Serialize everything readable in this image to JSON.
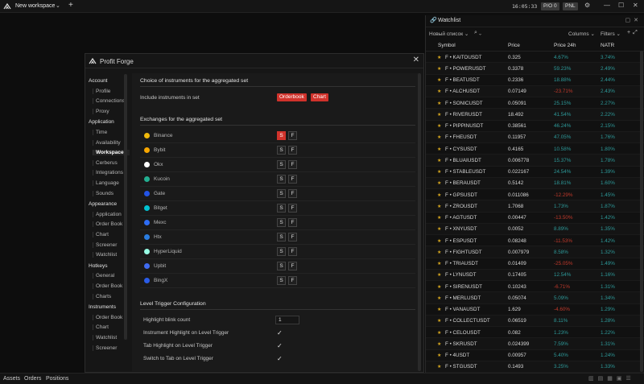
{
  "topbar": {
    "workspace": "New workspace",
    "clock": "16:05:33",
    "po_label": "P/O 0",
    "pnl_label": "PNL"
  },
  "bottombar": {
    "tabs": [
      "Assets",
      "Orders",
      "Positions"
    ]
  },
  "watchlist": {
    "title": "Watchlist",
    "list_name": "Новый список",
    "columns_label": "Columns",
    "filters_label": "Filters",
    "headers": {
      "symbol": "Symbol",
      "price": "Price",
      "change": "Price 24h",
      "natr": "NATR"
    },
    "rows": [
      {
        "symbol": "F • KAITOUSDT",
        "price": "0.325",
        "change": "4.67%",
        "dir": "pos",
        "natr": "3.74%"
      },
      {
        "symbol": "F • POWERUSDT",
        "price": "0.3378",
        "change": "59.23%",
        "dir": "pos",
        "natr": "2.49%"
      },
      {
        "symbol": "F • BEATUSDT",
        "price": "0.2336",
        "change": "18.88%",
        "dir": "pos",
        "natr": "2.44%"
      },
      {
        "symbol": "F • ALCHUSDT",
        "price": "0.07149",
        "change": "-23.71%",
        "dir": "neg",
        "natr": "2.43%"
      },
      {
        "symbol": "F • SONICUSDT",
        "price": "0.05091",
        "change": "25.15%",
        "dir": "pos",
        "natr": "2.27%"
      },
      {
        "symbol": "F • RIVERUSDT",
        "price": "18.492",
        "change": "41.54%",
        "dir": "pos",
        "natr": "2.22%"
      },
      {
        "symbol": "F • PIPPINUSDT",
        "price": "0.38561",
        "change": "46.24%",
        "dir": "pos",
        "natr": "2.15%"
      },
      {
        "symbol": "F • FHEUSDT",
        "price": "0.11957",
        "change": "47.05%",
        "dir": "pos",
        "natr": "1.76%"
      },
      {
        "symbol": "F • CYSUSDT",
        "price": "0.4165",
        "change": "10.58%",
        "dir": "pos",
        "natr": "1.80%"
      },
      {
        "symbol": "F • BLUAIUSDT",
        "price": "0.006778",
        "change": "15.37%",
        "dir": "pos",
        "natr": "1.78%"
      },
      {
        "symbol": "F • STABLEUSDT",
        "price": "0.022167",
        "change": "24.54%",
        "dir": "pos",
        "natr": "1.39%"
      },
      {
        "symbol": "F • BERAUSDT",
        "price": "0.5142",
        "change": "18.81%",
        "dir": "pos",
        "natr": "1.60%"
      },
      {
        "symbol": "F • GPSUSDT",
        "price": "0.011086",
        "change": "-12.29%",
        "dir": "neg",
        "natr": "1.45%"
      },
      {
        "symbol": "F • ZROUSDT",
        "price": "1.7068",
        "change": "1.73%",
        "dir": "pos",
        "natr": "1.87%"
      },
      {
        "symbol": "F • AGTUSDT",
        "price": "0.00447",
        "change": "-13.50%",
        "dir": "neg",
        "natr": "1.42%"
      },
      {
        "symbol": "F • XNYUSDT",
        "price": "0.0052",
        "change": "8.89%",
        "dir": "pos",
        "natr": "1.35%"
      },
      {
        "symbol": "F • ESPUSDT",
        "price": "0.08248",
        "change": "-11.53%",
        "dir": "neg",
        "natr": "1.42%"
      },
      {
        "symbol": "F • FIGHTUSDT",
        "price": "0.007979",
        "change": "8.58%",
        "dir": "pos",
        "natr": "1.32%"
      },
      {
        "symbol": "F • TRIAUSDT",
        "price": "0.01409",
        "change": "-25.05%",
        "dir": "neg",
        "natr": "1.49%"
      },
      {
        "symbol": "F • LYNUSDT",
        "price": "0.17405",
        "change": "12.54%",
        "dir": "pos",
        "natr": "1.16%"
      },
      {
        "symbol": "F • SIRENUSDT",
        "price": "0.10243",
        "change": "-6.71%",
        "dir": "neg",
        "natr": "1.31%"
      },
      {
        "symbol": "F • MERLUSDT",
        "price": "0.05074",
        "change": "5.09%",
        "dir": "pos",
        "natr": "1.34%"
      },
      {
        "symbol": "F • VANAUSDT",
        "price": "1.629",
        "change": "-4.60%",
        "dir": "neg",
        "natr": "1.29%"
      },
      {
        "symbol": "F • COLLECTUSDT",
        "price": "0.06519",
        "change": "8.11%",
        "dir": "pos",
        "natr": "1.28%"
      },
      {
        "symbol": "F • CELOUSDT",
        "price": "0.082",
        "change": "1.23%",
        "dir": "pos",
        "natr": "1.22%"
      },
      {
        "symbol": "F • SKRUSDT",
        "price": "0.024399",
        "change": "7.59%",
        "dir": "pos",
        "natr": "1.31%"
      },
      {
        "symbol": "F • 4USDT",
        "price": "0.00957",
        "change": "5.40%",
        "dir": "pos",
        "natr": "1.24%"
      },
      {
        "symbol": "F • STGUSDT",
        "price": "0.1493",
        "change": "3.25%",
        "dir": "pos",
        "natr": "1.33%"
      }
    ]
  },
  "modal": {
    "title": "Profit Forge",
    "sidebar": [
      {
        "type": "sec",
        "label": "Account"
      },
      {
        "type": "itm",
        "label": "Profile"
      },
      {
        "type": "itm",
        "label": "Connections"
      },
      {
        "type": "itm",
        "label": "Proxy"
      },
      {
        "type": "sec",
        "label": "Application"
      },
      {
        "type": "itm",
        "label": "Time"
      },
      {
        "type": "itm",
        "label": "Availability"
      },
      {
        "type": "itm",
        "label": "Workspace",
        "active": true
      },
      {
        "type": "itm",
        "label": "Cerberus"
      },
      {
        "type": "itm",
        "label": "Integrations"
      },
      {
        "type": "itm",
        "label": "Language"
      },
      {
        "type": "itm",
        "label": "Sounds"
      },
      {
        "type": "sec",
        "label": "Appearance"
      },
      {
        "type": "itm",
        "label": "Application"
      },
      {
        "type": "itm",
        "label": "Order Book"
      },
      {
        "type": "itm",
        "label": "Chart"
      },
      {
        "type": "itm",
        "label": "Screener"
      },
      {
        "type": "itm",
        "label": "Watchlist"
      },
      {
        "type": "sec",
        "label": "Hotkeys"
      },
      {
        "type": "itm",
        "label": "General"
      },
      {
        "type": "itm",
        "label": "Order Book"
      },
      {
        "type": "itm",
        "label": "Charts"
      },
      {
        "type": "sec",
        "label": "Instruments"
      },
      {
        "type": "itm",
        "label": "Order Book"
      },
      {
        "type": "itm",
        "label": "Chart"
      },
      {
        "type": "itm",
        "label": "Watchlist"
      },
      {
        "type": "itm",
        "label": "Screener"
      }
    ],
    "choice_section": {
      "title": "Choice of instruments for the aggregated set",
      "include_label": "Include instruments in set",
      "orderbook_btn": "Orderbook",
      "chart_btn": "Chart"
    },
    "exchanges_section": {
      "title": "Exchanges for the aggregated set",
      "s_label": "S",
      "f_label": "F",
      "exchanges": [
        {
          "name": "Binance",
          "icon_color": "#f0b90b",
          "s_on": true
        },
        {
          "name": "Bybit",
          "icon_color": "#f7a600",
          "s_on": false
        },
        {
          "name": "Okx",
          "icon_color": "#ffffff",
          "s_on": false
        },
        {
          "name": "Kucoin",
          "icon_color": "#23af91",
          "s_on": false
        },
        {
          "name": "Gate",
          "icon_color": "#2354e6",
          "s_on": false
        },
        {
          "name": "Bitget",
          "icon_color": "#00c2d1",
          "s_on": false
        },
        {
          "name": "Mexc",
          "icon_color": "#2e6df6",
          "s_on": false
        },
        {
          "name": "Htx",
          "icon_color": "#2a7de1",
          "s_on": false
        },
        {
          "name": "HyperLiquid",
          "icon_color": "#97fce4",
          "s_on": false
        },
        {
          "name": "Upbit",
          "icon_color": "#3f6bf0",
          "s_on": false
        },
        {
          "name": "BingX",
          "icon_color": "#2a5ce8",
          "s_on": false
        }
      ]
    },
    "level_section": {
      "title": "Level Trigger Configuration",
      "blink_label": "Highlight blink count",
      "blink_value": "1",
      "instr_highlight": "Instrument Highlight on Level Trigger",
      "tab_highlight": "Tab Highlight on Level Trigger",
      "switch_tab": "Switch to Tab on Level Trigger"
    }
  }
}
